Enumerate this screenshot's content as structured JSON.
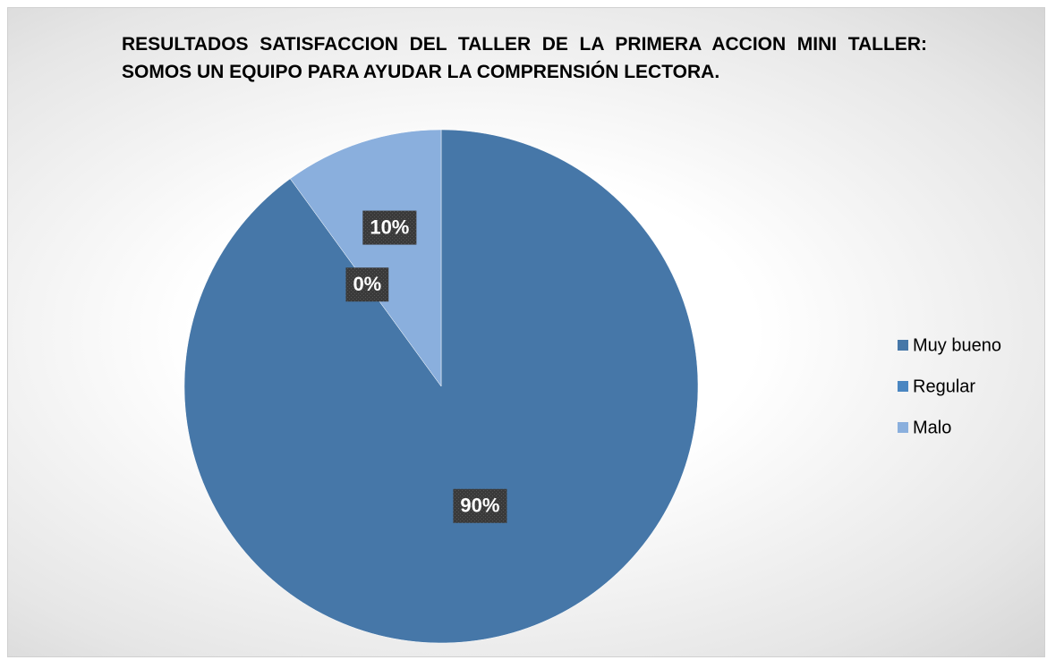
{
  "chart_data": {
    "type": "pie",
    "title": "RESULTADOS SATISFACCION DEL TALLER DE LA PRIMERA ACCION MINI TALLER: SOMOS UN EQUIPO PARA AYUDAR LA COMPRENSIÓN LECTORA.",
    "categories": [
      "Muy bueno",
      "Regular",
      "Malo"
    ],
    "values": [
      90,
      0,
      10
    ],
    "value_labels": [
      "90%",
      "0%",
      "10%"
    ],
    "colors": [
      "#4677a8",
      "#4a86c1",
      "#8aafdd"
    ],
    "legend": "right"
  }
}
